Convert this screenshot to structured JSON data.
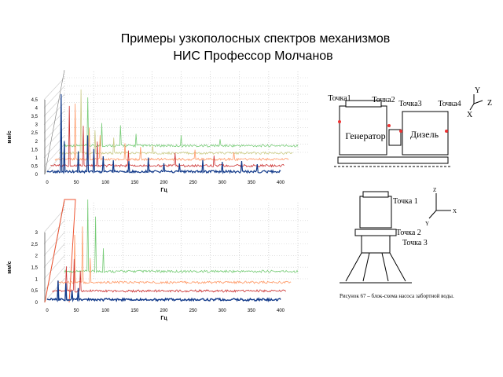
{
  "title": [
    "Примеры узкополосных спектров механизмов",
    "НИС Профессор Молчанов"
  ],
  "charts": [
    {
      "y_unit": "мм/с",
      "x_unit": "Гц",
      "yticks": [
        "0",
        "0,5",
        "1",
        "1,5",
        "2",
        "2,5",
        "3",
        "3,5",
        "4",
        "4,5"
      ],
      "xticks": [
        "0",
        "50",
        "100",
        "150",
        "200",
        "250",
        "300",
        "350",
        "400"
      ]
    },
    {
      "y_unit": "мм/с",
      "x_unit": "Гц",
      "yticks": [
        "0",
        "0,5",
        "1",
        "1,5",
        "2",
        "2,5",
        "3"
      ],
      "xticks": [
        "0",
        "50",
        "100",
        "150",
        "200",
        "250",
        "300",
        "350",
        "400"
      ]
    }
  ],
  "diagram1": {
    "points": [
      "Точка1",
      "Точка2",
      "Точка3",
      "Точка4"
    ],
    "units": [
      "Генератор",
      "Дизель"
    ],
    "axes": [
      "Y",
      "Z",
      "X"
    ]
  },
  "diagram2": {
    "points": [
      "Точка 1",
      "Точка 2",
      "Точка 3"
    ],
    "axes": [
      "Z",
      "X",
      "Y"
    ],
    "caption": "Рисунок 67 – блок-схема насоса забортной воды."
  }
}
